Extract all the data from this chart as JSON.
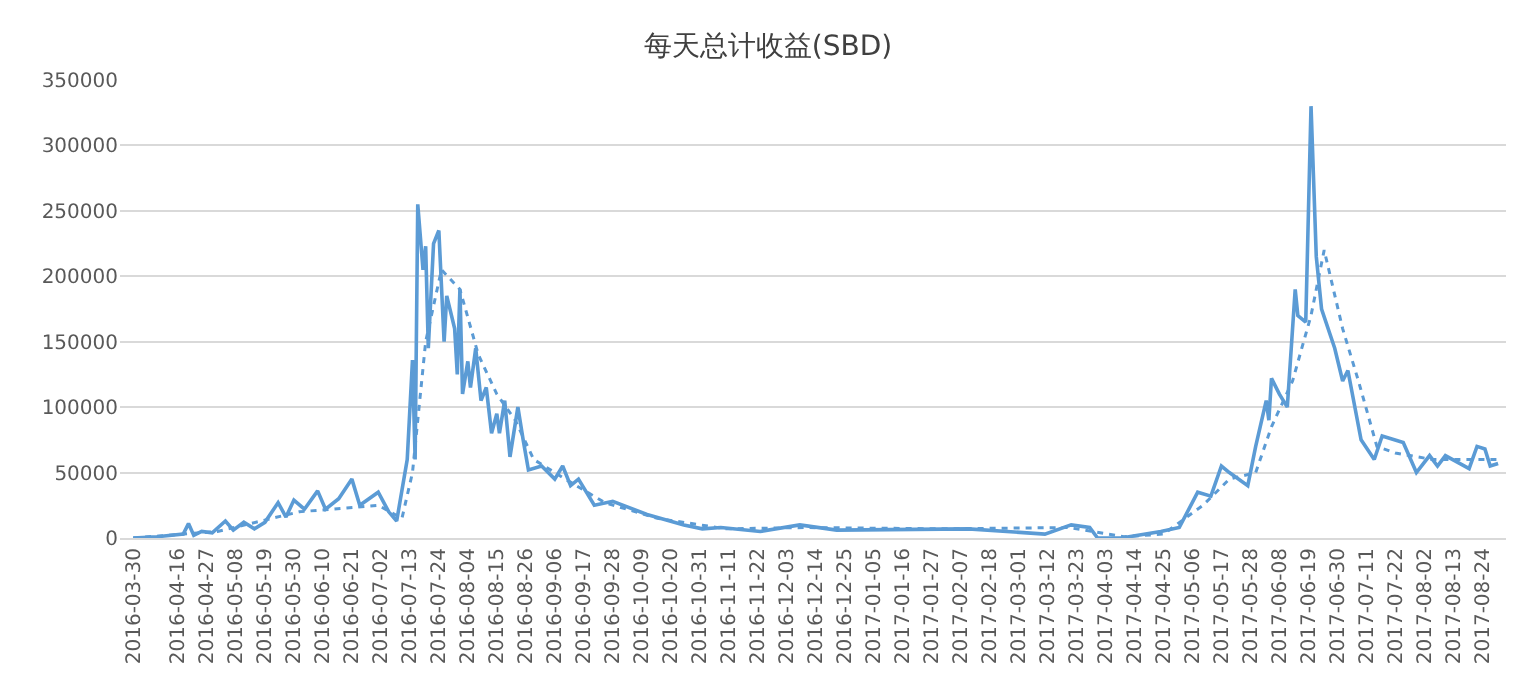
{
  "chart_data": {
    "type": "line",
    "title": "每天总计收益(SBD)",
    "series": [
      {
        "color": "#5b9bd5",
        "line_style": "solid",
        "x": [
          "2016-03-30",
          "2016-04-08",
          "2016-04-18",
          "2016-04-20",
          "2016-04-22",
          "2016-04-25",
          "2016-04-29",
          "2016-05-04",
          "2016-05-07",
          "2016-05-11",
          "2016-05-15",
          "2016-05-19",
          "2016-05-24",
          "2016-05-27",
          "2016-05-30",
          "2016-06-03",
          "2016-06-08",
          "2016-06-11",
          "2016-06-16",
          "2016-06-21",
          "2016-06-24",
          "2016-07-01",
          "2016-07-05",
          "2016-07-08",
          "2016-07-12",
          "2016-07-14",
          "2016-07-15",
          "2016-07-16",
          "2016-07-18",
          "2016-07-19",
          "2016-07-20",
          "2016-07-22",
          "2016-07-24",
          "2016-07-26",
          "2016-07-27",
          "2016-07-30",
          "2016-07-31",
          "2016-08-01",
          "2016-08-02",
          "2016-08-04",
          "2016-08-05",
          "2016-08-07",
          "2016-08-09",
          "2016-08-11",
          "2016-08-13",
          "2016-08-15",
          "2016-08-16",
          "2016-08-18",
          "2016-08-20",
          "2016-08-23",
          "2016-08-25",
          "2016-08-27",
          "2016-09-01",
          "2016-09-06",
          "2016-09-09",
          "2016-09-12",
          "2016-09-15",
          "2016-09-21",
          "2016-09-28",
          "2016-10-11",
          "2016-10-25",
          "2016-11-01",
          "2016-11-08",
          "2016-11-23",
          "2016-12-08",
          "2016-12-22",
          "2017-02-10",
          "2017-03-11",
          "2017-03-21",
          "2017-03-28",
          "2017-03-31",
          "2017-04-09",
          "2017-04-24",
          "2017-05-01",
          "2017-05-08",
          "2017-05-13",
          "2017-05-17",
          "2017-05-20",
          "2017-05-27",
          "2017-05-30",
          "2017-06-03",
          "2017-06-04",
          "2017-06-05",
          "2017-06-08",
          "2017-06-11",
          "2017-06-14",
          "2017-06-15",
          "2017-06-18",
          "2017-06-20",
          "2017-06-22",
          "2017-06-24",
          "2017-06-29",
          "2017-07-02",
          "2017-07-04",
          "2017-07-09",
          "2017-07-14",
          "2017-07-17",
          "2017-07-25",
          "2017-07-30",
          "2017-08-04",
          "2017-08-07",
          "2017-08-10",
          "2017-08-19",
          "2017-08-22",
          "2017-08-25",
          "2017-08-27",
          "2017-08-30"
        ],
        "values": [
          0,
          1000,
          3000,
          11000,
          2000,
          5000,
          4000,
          13000,
          6000,
          12000,
          7000,
          12000,
          27000,
          16000,
          29000,
          22000,
          36000,
          22000,
          30000,
          45000,
          25000,
          35000,
          20000,
          13000,
          60000,
          136000,
          60000,
          255000,
          205000,
          223000,
          145000,
          225000,
          235000,
          150000,
          185000,
          160000,
          125000,
          190000,
          110000,
          135000,
          115000,
          145000,
          105000,
          115000,
          80000,
          95000,
          80000,
          105000,
          62000,
          100000,
          75000,
          52000,
          55000,
          45000,
          55000,
          40000,
          45000,
          25000,
          28000,
          18000,
          10000,
          7000,
          8000,
          5000,
          10000,
          6000,
          7000,
          3000,
          10000,
          8000,
          0,
          0,
          5000,
          8000,
          35000,
          32000,
          55000,
          50000,
          40000,
          70000,
          105000,
          90000,
          122000,
          110000,
          100000,
          190000,
          170000,
          165000,
          330000,
          215000,
          175000,
          145000,
          120000,
          128000,
          75000,
          60000,
          78000,
          73000,
          50000,
          63000,
          55000,
          63000,
          53000,
          70000,
          68000,
          55000,
          57000
        ]
      },
      {
        "color": "#5b9bd5",
        "line_style": "dotted",
        "x": [
          "2016-03-30",
          "2016-05-01",
          "2016-06-01",
          "2016-07-01",
          "2016-07-10",
          "2016-07-14",
          "2016-07-19",
          "2016-07-25",
          "2016-08-01",
          "2016-08-08",
          "2016-08-15",
          "2016-08-22",
          "2016-08-29",
          "2016-09-10",
          "2016-09-25",
          "2016-10-15",
          "2016-11-10",
          "2016-12-10",
          "2017-02-01",
          "2017-03-20",
          "2017-04-10",
          "2017-04-25",
          "2017-05-10",
          "2017-05-20",
          "2017-05-30",
          "2017-06-05",
          "2017-06-13",
          "2017-06-20",
          "2017-06-25",
          "2017-07-02",
          "2017-07-08",
          "2017-07-15",
          "2017-07-22",
          "2017-08-05",
          "2017-08-30"
        ],
        "values": [
          0,
          5000,
          20000,
          25000,
          15000,
          50000,
          150000,
          205000,
          190000,
          140000,
          110000,
          90000,
          60000,
          45000,
          27000,
          15000,
          7000,
          8000,
          7000,
          8000,
          1000,
          3000,
          25000,
          45000,
          50000,
          85000,
          120000,
          170000,
          220000,
          160000,
          120000,
          70000,
          65000,
          60000,
          60000
        ]
      }
    ],
    "xlim": [
      "2016-03-25",
      "2017-09-02"
    ],
    "xticks": [
      "2016-03-30",
      "2016-04-16",
      "2016-04-27",
      "2016-05-08",
      "2016-05-19",
      "2016-05-30",
      "2016-06-10",
      "2016-06-21",
      "2016-07-02",
      "2016-07-13",
      "2016-07-24",
      "2016-08-04",
      "2016-08-15",
      "2016-08-26",
      "2016-09-06",
      "2016-09-17",
      "2016-09-28",
      "2016-10-09",
      "2016-10-20",
      "2016-10-31",
      "2016-11-11",
      "2016-11-22",
      "2016-12-03",
      "2016-12-14",
      "2016-12-25",
      "2017-01-05",
      "2017-01-16",
      "2017-01-27",
      "2017-02-07",
      "2017-02-18",
      "2017-03-01",
      "2017-03-12",
      "2017-03-23",
      "2017-04-03",
      "2017-04-14",
      "2017-04-25",
      "2017-05-06",
      "2017-05-17",
      "2017-05-28",
      "2017-06-08",
      "2017-06-19",
      "2017-06-30",
      "2017-07-11",
      "2017-07-22",
      "2017-08-02",
      "2017-08-13",
      "2017-08-24"
    ],
    "ylim": [
      0,
      350000
    ],
    "yticks": [
      0,
      50000,
      100000,
      150000,
      200000,
      250000,
      300000,
      350000
    ],
    "grid": "y",
    "marker": "none"
  }
}
